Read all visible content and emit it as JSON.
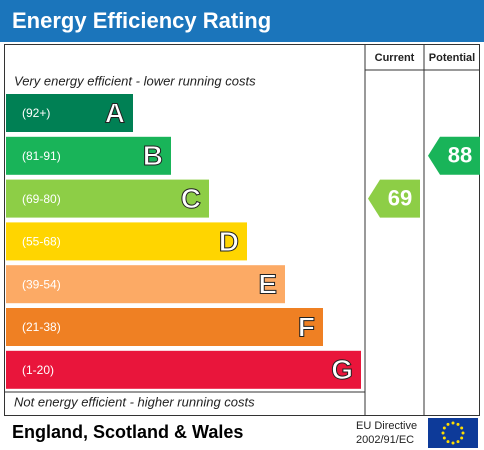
{
  "header": {
    "title": "Energy Efficiency Rating"
  },
  "columns": [
    "Current",
    "Potential"
  ],
  "top_note": "Very energy efficient - lower running costs",
  "bottom_note": "Not energy efficient - higher running costs",
  "bands": [
    {
      "range": "(92+)",
      "letter": "A",
      "color": "#008054"
    },
    {
      "range": "(81-91)",
      "letter": "B",
      "color": "#19b459"
    },
    {
      "range": "(69-80)",
      "letter": "C",
      "color": "#8dce46"
    },
    {
      "range": "(55-68)",
      "letter": "D",
      "color": "#ffd500"
    },
    {
      "range": "(39-54)",
      "letter": "E",
      "color": "#fcaa65"
    },
    {
      "range": "(21-38)",
      "letter": "F",
      "color": "#ef8023"
    },
    {
      "range": "(1-20)",
      "letter": "G",
      "color": "#e9153b"
    }
  ],
  "current": 69,
  "potential": 88,
  "footer": {
    "region": "England, Scotland & Wales",
    "directive": "EU Directive",
    "directive_code": "2002/91/EC"
  }
}
